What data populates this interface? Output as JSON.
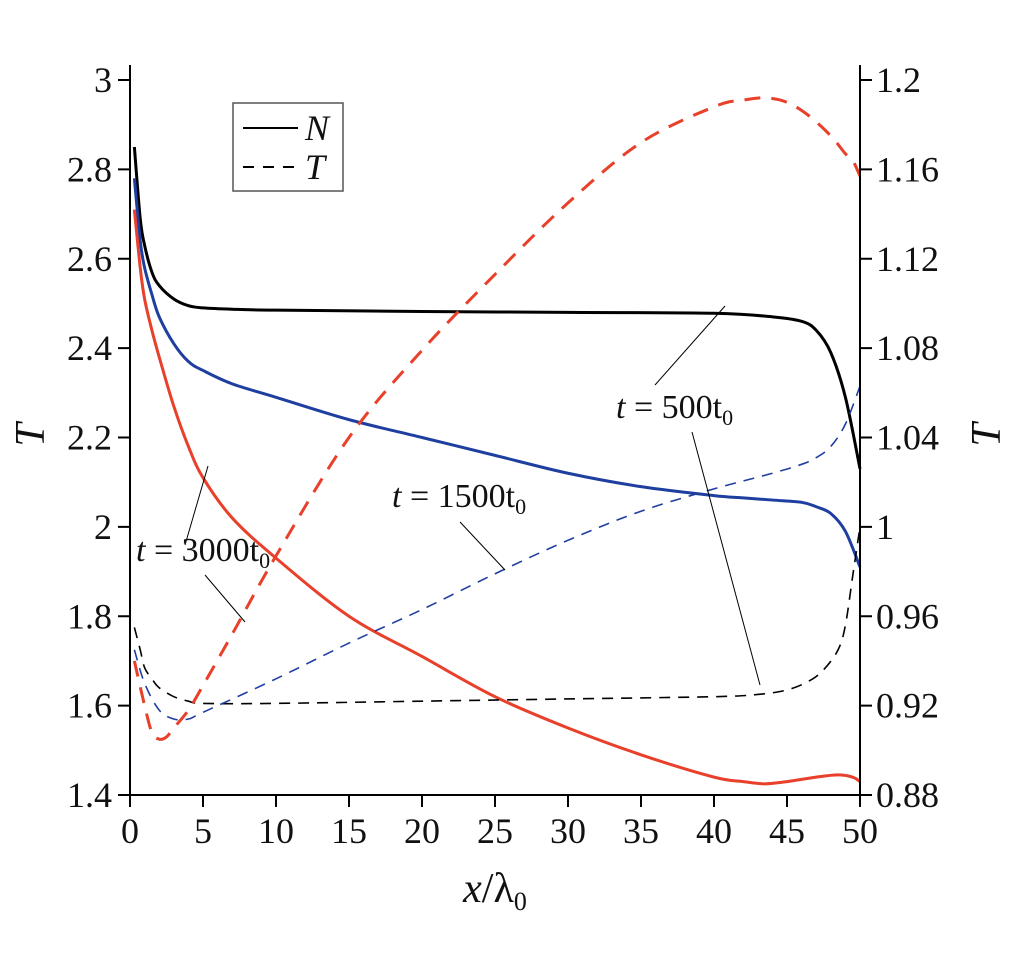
{
  "chart_data": {
    "type": "line",
    "x_axis": {
      "label_main": "x",
      "label_lambda": "λ",
      "label_sub": "0",
      "ticks": [
        0,
        5,
        10,
        15,
        20,
        25,
        30,
        35,
        40,
        45,
        50
      ],
      "range": [
        0,
        50
      ]
    },
    "y_left": {
      "label": "T",
      "range": [
        1.4,
        3.0
      ],
      "ticks": [
        1.4,
        1.6,
        1.8,
        2.0,
        2.2,
        2.4,
        2.6,
        2.8,
        3.0
      ],
      "tick_labels": [
        "1.4",
        "1.6",
        "1.8",
        "2",
        "2.2",
        "2.4",
        "2.6",
        "2.8",
        "3"
      ]
    },
    "y_right": {
      "label": "T",
      "range": [
        0.88,
        1.2
      ],
      "ticks": [
        0.88,
        0.92,
        0.96,
        1.0,
        1.04,
        1.08,
        1.12,
        1.16,
        1.2
      ],
      "tick_labels": [
        "0.88",
        "0.92",
        "0.96",
        "1",
        "1.04",
        "1.08",
        "1.12",
        "1.16",
        "1.2"
      ]
    },
    "legend": {
      "position": "top-left",
      "entries": [
        {
          "label": "N",
          "style": "solid"
        },
        {
          "label": "T",
          "style": "dashed"
        }
      ]
    },
    "annotations": [
      {
        "prefix": "t",
        "equals": " = ",
        "value": "500t",
        "sub": "0"
      },
      {
        "prefix": "t",
        "equals": " = ",
        "value": "1500t",
        "sub": "0"
      },
      {
        "prefix": "t",
        "equals": " = ",
        "value": "3000t",
        "sub": "0"
      }
    ],
    "series": [
      {
        "name": "N, t = 500t0",
        "style": "solid",
        "axis": "left",
        "color": "#000000",
        "x": [
          0.3,
          0.7,
          1.0,
          1.5,
          2,
          3,
          4,
          5,
          7,
          10,
          20,
          30,
          40,
          44,
          46,
          47,
          48,
          49,
          50
        ],
        "y": [
          2.85,
          2.69,
          2.63,
          2.57,
          2.54,
          2.51,
          2.495,
          2.49,
          2.487,
          2.485,
          2.482,
          2.48,
          2.478,
          2.47,
          2.46,
          2.44,
          2.39,
          2.29,
          2.13
        ]
      },
      {
        "name": "N, t = 1500t0",
        "style": "solid",
        "axis": "left",
        "color": "#1f3fa0",
        "x": [
          0.3,
          0.7,
          1.0,
          1.5,
          2,
          3,
          4,
          5,
          7,
          10,
          15,
          20,
          25,
          30,
          35,
          40,
          42,
          44,
          46,
          47,
          48,
          49,
          50
        ],
        "y": [
          2.78,
          2.64,
          2.58,
          2.52,
          2.47,
          2.41,
          2.37,
          2.35,
          2.32,
          2.29,
          2.24,
          2.2,
          2.16,
          2.12,
          2.09,
          2.07,
          2.065,
          2.06,
          2.055,
          2.045,
          2.03,
          1.99,
          1.91
        ]
      },
      {
        "name": "N, t = 3000t0",
        "style": "solid",
        "axis": "left",
        "color": "#e8402a",
        "x": [
          0.3,
          0.7,
          1,
          1.5,
          2,
          3,
          4,
          5,
          7,
          10,
          15,
          20,
          25,
          30,
          35,
          40,
          42,
          43.5,
          45,
          47,
          48.5,
          49.5,
          50
        ],
        "y": [
          2.71,
          2.58,
          2.51,
          2.44,
          2.38,
          2.27,
          2.18,
          2.11,
          2.02,
          1.93,
          1.8,
          1.71,
          1.62,
          1.55,
          1.49,
          1.44,
          1.43,
          1.425,
          1.43,
          1.44,
          1.445,
          1.44,
          1.43
        ]
      },
      {
        "name": "T, t = 500t0",
        "style": "dashed",
        "axis": "right",
        "color": "#000000",
        "x": [
          0.3,
          0.7,
          1,
          1.5,
          2,
          3,
          4,
          5,
          10,
          20,
          30,
          40,
          43,
          45,
          46.5,
          47.5,
          48.5,
          49,
          49.5,
          50
        ],
        "y": [
          0.955,
          0.945,
          0.937,
          0.932,
          0.928,
          0.924,
          0.922,
          0.921,
          0.921,
          0.922,
          0.923,
          0.924,
          0.925,
          0.927,
          0.931,
          0.936,
          0.945,
          0.956,
          0.978,
          1.0
        ]
      },
      {
        "name": "T, t = 1500t0",
        "style": "dashed",
        "axis": "right",
        "color": "#1f3fa0",
        "x": [
          0.3,
          1,
          2,
          3,
          4,
          5,
          10,
          15,
          20,
          25,
          30,
          35,
          40,
          44,
          46,
          47,
          48,
          49,
          50
        ],
        "y": [
          0.945,
          0.93,
          0.918,
          0.914,
          0.914,
          0.917,
          0.932,
          0.948,
          0.963,
          0.979,
          0.994,
          1.007,
          1.017,
          1.024,
          1.028,
          1.031,
          1.036,
          1.046,
          1.063
        ]
      },
      {
        "name": "T, t = 3000t0",
        "style": "dashed",
        "axis": "right",
        "color": "#e8402a",
        "x": [
          0.3,
          1,
          1.5,
          2,
          2.5,
          3,
          4,
          5,
          7,
          10,
          15,
          20,
          25,
          30,
          35,
          40,
          42,
          43.5,
          45,
          46.5,
          48,
          49,
          49.5,
          50
        ],
        "y": [
          0.94,
          0.92,
          0.908,
          0.905,
          0.906,
          0.91,
          0.918,
          0.929,
          0.952,
          0.987,
          1.04,
          1.079,
          1.113,
          1.145,
          1.172,
          1.188,
          1.191,
          1.192,
          1.19,
          1.184,
          1.175,
          1.167,
          1.164,
          1.157
        ]
      }
    ]
  }
}
